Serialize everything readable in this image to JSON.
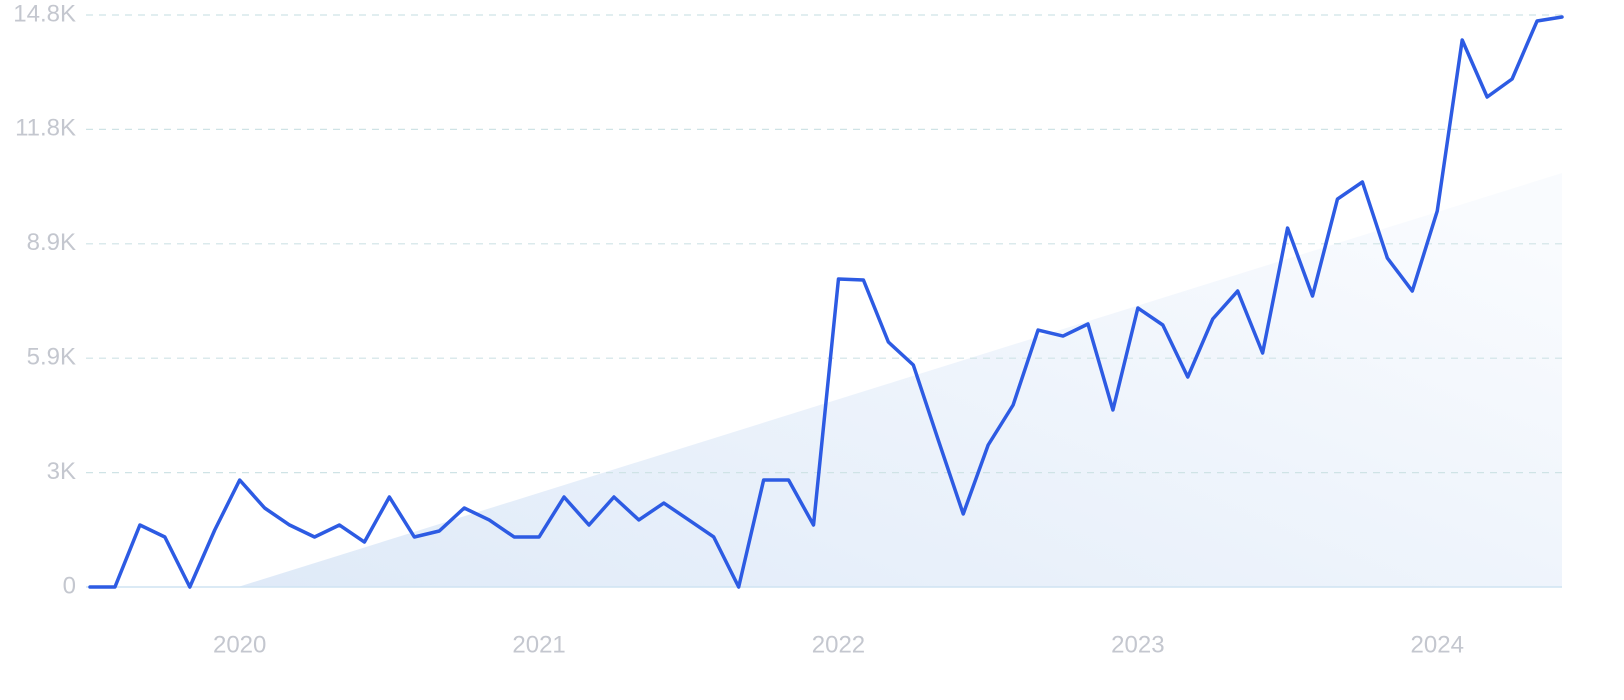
{
  "chart_data": {
    "type": "line",
    "categories": [
      null,
      null,
      null,
      null,
      null,
      null,
      "2020",
      null,
      null,
      null,
      null,
      null,
      null,
      null,
      null,
      null,
      null,
      null,
      "2021",
      null,
      null,
      null,
      null,
      null,
      null,
      null,
      null,
      null,
      null,
      null,
      "2022",
      null,
      null,
      null,
      null,
      null,
      null,
      null,
      null,
      null,
      null,
      null,
      "2023",
      null,
      null,
      null,
      null,
      null,
      null,
      null,
      null,
      null,
      null,
      null,
      "2024",
      null,
      null,
      null,
      null,
      null
    ],
    "values": [
      0,
      0,
      1604,
      1294,
      0,
      1475,
      2768,
      2044,
      1604,
      1294,
      1604,
      1164,
      2329,
      1294,
      1449,
      2044,
      1734,
      1294,
      1294,
      2329,
      1604,
      2329,
      1734,
      2173,
      1734,
      1294,
      0,
      2768,
      2768,
      1604,
      7969,
      7943,
      6339,
      5744,
      3803,
      1889,
      3674,
      4709,
      6649,
      6494,
      6805,
      4580,
      7219,
      6779,
      5433,
      6934,
      7658,
      6054,
      9288,
      7529,
      10039,
      10479,
      8512,
      7658,
      9728,
      14153,
      12678,
      13144,
      14644,
      14748
    ],
    "color": "#2d5be3",
    "ylim": [
      0,
      14800
    ],
    "yticks": [
      {
        "value": 0,
        "label": "0"
      },
      {
        "value": 2960,
        "label": "3K"
      },
      {
        "value": 5920,
        "label": "5.9K"
      },
      {
        "value": 8880,
        "label": "8.9K"
      },
      {
        "value": 11840,
        "label": "11.8K"
      },
      {
        "value": 14800,
        "label": "14.8K"
      }
    ],
    "grid": true
  }
}
